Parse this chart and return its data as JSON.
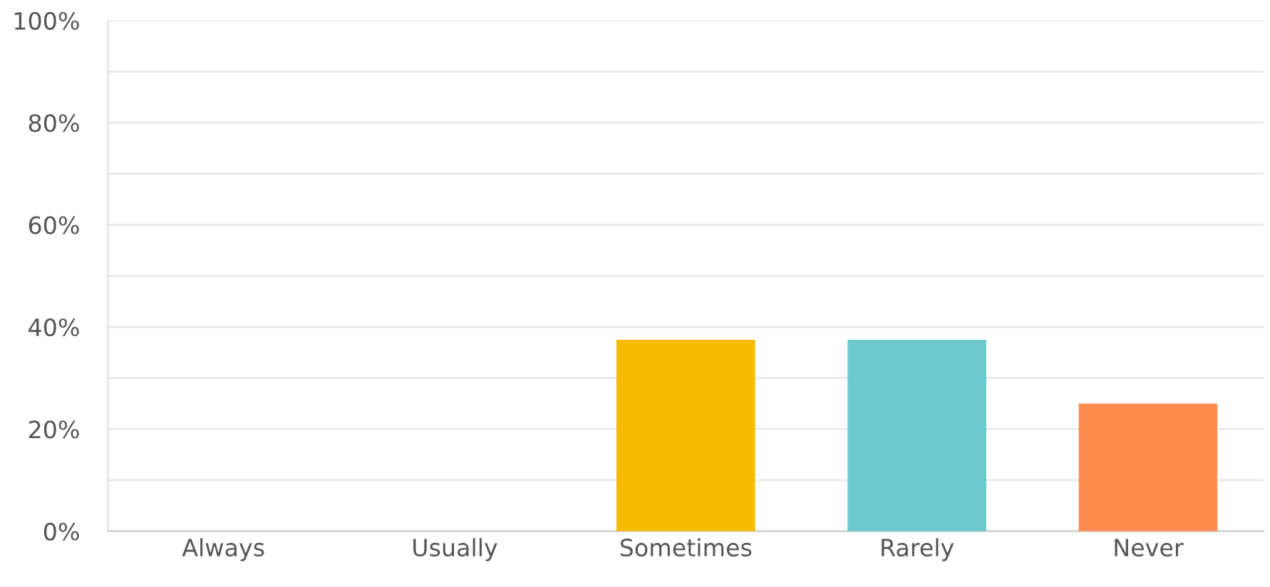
{
  "chart_data": {
    "type": "bar",
    "categories": [
      "Always",
      "Usually",
      "Sometimes",
      "Rarely",
      "Never"
    ],
    "values": [
      0,
      0,
      37.5,
      37.5,
      25
    ],
    "colors": [
      "#2dbdb7",
      "#a3d06d",
      "#f7bc00",
      "#6bc8cd",
      "#ff8b4f"
    ],
    "ylim": [
      0,
      100
    ],
    "yticks": [
      {
        "value": 0,
        "label": "0%"
      },
      {
        "value": 10,
        "label": null
      },
      {
        "value": 20,
        "label": "20%"
      },
      {
        "value": 30,
        "label": null
      },
      {
        "value": 40,
        "label": "40%"
      },
      {
        "value": 50,
        "label": null
      },
      {
        "value": 60,
        "label": "60%"
      },
      {
        "value": 70,
        "label": null
      },
      {
        "value": 80,
        "label": "80%"
      },
      {
        "value": 90,
        "label": null
      },
      {
        "value": 100,
        "label": "100%"
      }
    ],
    "grid": "y"
  }
}
